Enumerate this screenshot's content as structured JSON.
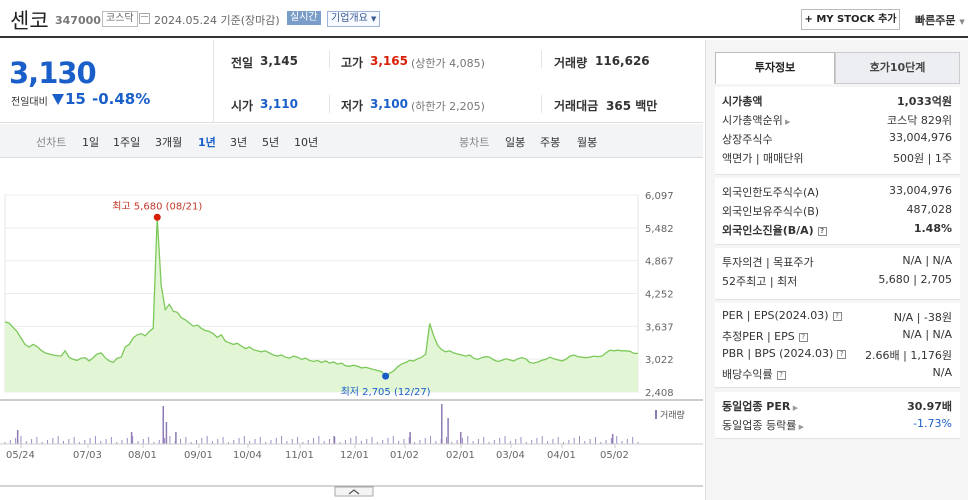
{
  "header": {
    "name": "센코",
    "code": "347000",
    "market": "코스닥",
    "date": "2024.05.24  기준(장마감)",
    "realtime": "실시간",
    "overview": "기업개요",
    "my_stock": "+ MY STOCK 추가",
    "quick_order": "빠른주문"
  },
  "quote": {
    "price": "3,130",
    "change_label": "전일대비",
    "change_value": "15",
    "change_pct": "-0.48%",
    "prev_label": "전일",
    "prev": "3,145",
    "open_label": "시가",
    "open": "3,110",
    "high_label": "고가",
    "high": "3,165",
    "upper_limit": "(상한가 4,085)",
    "low_label": "저가",
    "low": "3,100",
    "lower_limit": "(하한가 2,205)",
    "volume_label": "거래량",
    "volume": "116,626",
    "amount_label": "거래대금",
    "amount": "365 백만"
  },
  "periods": {
    "line_label": "선차트",
    "line": [
      "1일",
      "1주일",
      "3개월",
      "1년",
      "3년",
      "5년",
      "10년"
    ],
    "active": "1년",
    "candle_label": "봉차트",
    "candle": [
      "일봉",
      "주봉",
      "월봉"
    ]
  },
  "chart_data": {
    "type": "area",
    "y_ticks": [
      "6,097",
      "5,482",
      "4,867",
      "4,252",
      "3,637",
      "3,022",
      "2,408"
    ],
    "ylim": [
      2408,
      6097
    ],
    "x_ticks": [
      "05/24",
      "07/03",
      "08/01",
      "09/01",
      "10/04",
      "11/01",
      "12/01",
      "01/02",
      "02/01",
      "03/04",
      "04/01",
      "05/02"
    ],
    "high_annotation": "최고 5,680 (08/21)",
    "low_annotation": "최저 2,705 (12/27)",
    "volume_label": "거래량",
    "values": [
      3720,
      3700,
      3620,
      3540,
      3420,
      3300,
      3250,
      3300,
      3260,
      3190,
      3140,
      3120,
      3100,
      3090,
      3080,
      3180,
      3060,
      3020,
      3000,
      3040,
      3050,
      2990,
      3050,
      3120,
      3140,
      3050,
      2990,
      2960,
      3040,
      3060,
      3250,
      3300,
      3420,
      3480,
      3500,
      3460,
      3540,
      3600,
      5680,
      4400,
      3950,
      4050,
      3920,
      3900,
      3800,
      3760,
      3700,
      3640,
      3660,
      3600,
      3560,
      3540,
      3500,
      3430,
      3480,
      3360,
      3330,
      3300,
      3320,
      3270,
      3220,
      3250,
      3200,
      3180,
      3160,
      3180,
      3140,
      3100,
      3080,
      3100,
      3060,
      3040,
      3080,
      3060,
      3020,
      3040,
      3000,
      2980,
      3000,
      2960,
      2990,
      2950,
      2970,
      2930,
      2950,
      2900,
      2890,
      2910,
      2890,
      2860,
      2870,
      2850,
      2830,
      2810,
      2790,
      2705,
      2760,
      2800,
      2880,
      2930,
      2960,
      3000,
      2990,
      3030,
      3060,
      3120,
      3690,
      3460,
      3280,
      3200,
      3160,
      3180,
      3140,
      3120,
      3100,
      3080,
      3100,
      3040,
      3020,
      3050,
      3070,
      3060,
      3010,
      2980,
      3000,
      3030,
      3010,
      2990,
      3030,
      3050,
      3030,
      2960,
      2950,
      2970,
      3000,
      3020,
      3060,
      3030,
      3010,
      2990,
      3020,
      3080,
      3100,
      3070,
      3060,
      3050,
      3060,
      3080,
      3070,
      3080,
      3140,
      3190,
      3180,
      3190,
      3180,
      3180,
      3170,
      3130,
      3130
    ],
    "volume_spikes": [
      [
        0.02,
        0.35
      ],
      [
        0.2,
        0.3
      ],
      [
        0.25,
        0.95
      ],
      [
        0.255,
        0.55
      ],
      [
        0.27,
        0.3
      ],
      [
        0.52,
        0.2
      ],
      [
        0.64,
        0.3
      ],
      [
        0.69,
        1.0
      ],
      [
        0.7,
        0.65
      ],
      [
        0.72,
        0.3
      ],
      [
        0.96,
        0.25
      ]
    ]
  },
  "side": {
    "tab_active": "투자정보",
    "tab_other": "호가10단계",
    "s1": [
      {
        "k": "시가총액",
        "v": "1,033억원",
        "bold": true
      },
      {
        "k": "시가총액순위",
        "v": "코스닥 829위",
        "arrow": true
      },
      {
        "k": "상장주식수",
        "v": "33,004,976"
      },
      {
        "k": "액면가 | 매매단위",
        "v": "500원 | 1주"
      }
    ],
    "s2": [
      {
        "k": "외국인한도주식수(A)",
        "v": "33,004,976"
      },
      {
        "k": "외국인보유주식수(B)",
        "v": "487,028"
      },
      {
        "k": "외국인소진율(B/A)",
        "v": "1.48%",
        "bold": true,
        "help": true
      }
    ],
    "s3": [
      {
        "k": "투자의견 | 목표주가",
        "v": "N/A | N/A"
      },
      {
        "k": "52주최고 | 최저",
        "v": "5,680 | 2,705"
      }
    ],
    "s4": [
      {
        "k": "PER | EPS(2024.03)",
        "v": "N/A | -38원",
        "help": true
      },
      {
        "k": "추정PER | EPS",
        "v": "N/A | N/A",
        "help": true
      },
      {
        "k": "PBR | BPS (2024.03)",
        "v": "2.66배 | 1,176원",
        "help": true
      },
      {
        "k": "배당수익률",
        "v": "N/A",
        "help": true
      }
    ],
    "s5": [
      {
        "k": "동일업종 PER",
        "v": "30.97배",
        "bold": true,
        "arrow": true
      },
      {
        "k": "동일업종 등락률",
        "v": "-1.73%",
        "arrow": true,
        "blueval": true
      }
    ]
  }
}
